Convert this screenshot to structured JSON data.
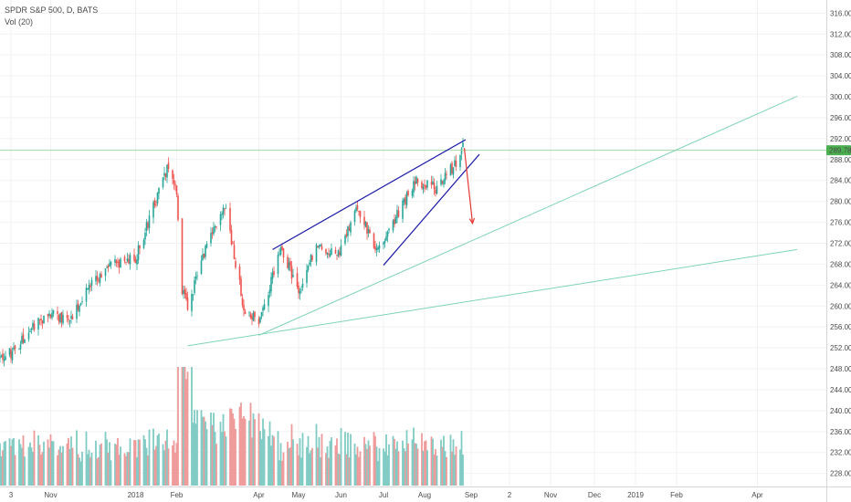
{
  "legend": {
    "symbol_line": "SPDR S&P 500, D, BATS",
    "volume_line": "Vol (20)"
  },
  "chart_data": {
    "type": "candlestick",
    "symbol": "SPDR S&P 500",
    "interval": "D",
    "exchange": "BATS",
    "last_price": 289.78,
    "last_price_label": "289.78",
    "y_ticks": [
      "228.00",
      "232.00",
      "236.00",
      "240.00",
      "244.00",
      "248.00",
      "252.00",
      "256.00",
      "260.00",
      "264.00",
      "268.00",
      "272.00",
      "276.00",
      "280.00",
      "284.00",
      "288.00",
      "292.00",
      "296.00",
      "300.00",
      "304.00",
      "308.00",
      "312.00",
      "316.00"
    ],
    "ylim": [
      225.5,
      318.5
    ],
    "x_ticks": [
      {
        "label": "3",
        "date": "2017-10-03"
      },
      {
        "label": "Nov",
        "date": "2017-11-01"
      },
      {
        "label": "2018",
        "date": "2018-01-02"
      },
      {
        "label": "Feb",
        "date": "2018-02-01"
      },
      {
        "label": "Apr",
        "date": "2018-04-02"
      },
      {
        "label": "May",
        "date": "2018-05-01"
      },
      {
        "label": "Jun",
        "date": "2018-06-01"
      },
      {
        "label": "Jul",
        "date": "2018-07-02"
      },
      {
        "label": "Aug",
        "date": "2018-08-01"
      },
      {
        "label": "Sep",
        "date": "2018-09-04"
      },
      {
        "label": "2",
        "date": "2018-10-02"
      },
      {
        "label": "Nov",
        "date": "2018-11-01"
      },
      {
        "label": "Dec",
        "date": "2018-12-03"
      },
      {
        "label": "2019",
        "date": "2019-01-02"
      },
      {
        "label": "Feb",
        "date": "2019-02-01"
      },
      {
        "label": "Apr",
        "date": "2019-04-01"
      }
    ],
    "price_anchors": [
      {
        "date": "2017-09-25",
        "close": 250.0
      },
      {
        "date": "2017-10-03",
        "close": 251.0
      },
      {
        "date": "2017-10-20",
        "close": 256.5
      },
      {
        "date": "2017-11-01",
        "close": 258.5
      },
      {
        "date": "2017-11-15",
        "close": 257.5
      },
      {
        "date": "2017-11-30",
        "close": 264.5
      },
      {
        "date": "2017-12-18",
        "close": 268.0
      },
      {
        "date": "2018-01-02",
        "close": 269.0
      },
      {
        "date": "2018-01-15",
        "close": 279.0
      },
      {
        "date": "2018-01-26",
        "close": 286.6
      },
      {
        "date": "2018-02-01",
        "close": 282.0
      },
      {
        "date": "2018-02-05",
        "close": 263.0
      },
      {
        "date": "2018-02-09",
        "close": 260.0
      },
      {
        "date": "2018-02-27",
        "close": 274.5
      },
      {
        "date": "2018-03-09",
        "close": 278.8
      },
      {
        "date": "2018-03-23",
        "close": 258.0
      },
      {
        "date": "2018-04-02",
        "close": 257.5
      },
      {
        "date": "2018-04-18",
        "close": 270.5
      },
      {
        "date": "2018-05-03",
        "close": 262.5
      },
      {
        "date": "2018-05-14",
        "close": 272.5
      },
      {
        "date": "2018-05-29",
        "close": 269.0
      },
      {
        "date": "2018-06-12",
        "close": 279.0
      },
      {
        "date": "2018-06-28",
        "close": 270.5
      },
      {
        "date": "2018-07-16",
        "close": 279.5
      },
      {
        "date": "2018-07-25",
        "close": 284.0
      },
      {
        "date": "2018-08-10",
        "close": 282.5
      },
      {
        "date": "2018-08-24",
        "close": 287.5
      },
      {
        "date": "2018-08-29",
        "close": 290.5
      }
    ],
    "volume_profile": "daily volume bars (red = down day, teal = up day); spike around 2018-02-05 to 2018-02-09"
  },
  "drawings": {
    "upper_channel_line": {
      "from": {
        "date": "2018-04-12",
        "price": 270.8
      },
      "to": {
        "date": "2018-08-31",
        "price": 291.8
      },
      "color": "#1a1aa6"
    },
    "lower_channel_line": {
      "from": {
        "date": "2018-07-02",
        "price": 267.8
      },
      "to": {
        "date": "2018-09-10",
        "price": 289.0
      },
      "color": "#1a1aa6"
    },
    "arrow": {
      "from": {
        "date": "2018-08-30",
        "price": 290.2
      },
      "to": {
        "date": "2018-09-05",
        "price": 275.8
      },
      "color": "#e53935"
    },
    "support_line_steep": {
      "from": {
        "date": "2018-04-02",
        "price": 254.4
      },
      "to": {
        "date": "2019-04-30",
        "price": 300.1
      },
      "color": "#7fd4b5"
    },
    "support_line_shallow": {
      "from": {
        "date": "2018-02-09",
        "price": 252.4
      },
      "to": {
        "date": "2019-04-30",
        "price": 270.8
      },
      "color": "#7fd4b5"
    },
    "last_price_line_color": "#a5d6a7"
  },
  "colors": {
    "up": "#26a69a",
    "down": "#ef5350",
    "volume_up": "#80cbc4",
    "volume_down": "#ef9a9a",
    "price_tag_bg": "#4caf50"
  }
}
